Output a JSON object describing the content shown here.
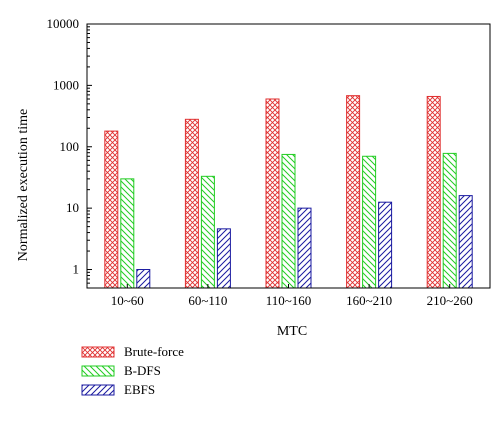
{
  "chart_data": {
    "type": "bar",
    "title": "",
    "xlabel": "MTC",
    "ylabel": "Normalized execution time",
    "categories": [
      "10~60",
      "60~110",
      "110~160",
      "160~210",
      "210~260"
    ],
    "y_scale": "log",
    "ylim": [
      0.5,
      10000
    ],
    "y_ticks": [
      1,
      10,
      100,
      1000,
      10000
    ],
    "y_tick_labels": [
      "1",
      "10",
      "100",
      "1000",
      "10000"
    ],
    "grid": false,
    "legend_position": "bottom-left",
    "series": [
      {
        "name": "Brute-force",
        "values": [
          180,
          280,
          600,
          680,
          660
        ],
        "color": "#e03030",
        "pattern": "crosshatch"
      },
      {
        "name": "B-DFS",
        "values": [
          30,
          33,
          75,
          70,
          78
        ],
        "color": "#22cc22",
        "pattern": "diagonal-left"
      },
      {
        "name": "EBFS",
        "values": [
          1,
          4.6,
          10,
          12.5,
          16
        ],
        "color": "#1a1aa0",
        "pattern": "diagonal-right"
      }
    ]
  }
}
